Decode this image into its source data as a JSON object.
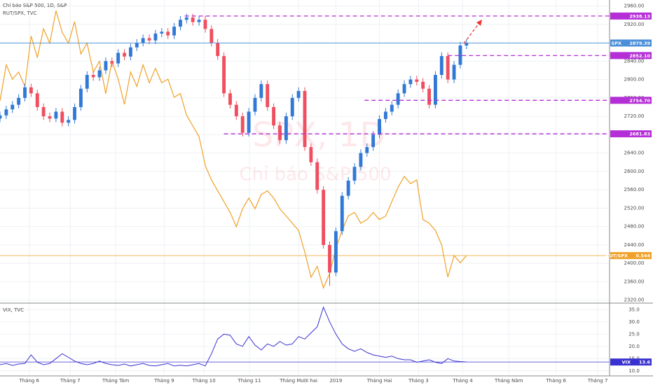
{
  "chart_data": [
    {
      "type": "candlestick",
      "title": "Chỉ báo S&P 500, 1D, S&P",
      "watermark": "SPX, 1D",
      "watermark_subtitle": "Chỉ báo S&P 500",
      "up_color": "#3179d6",
      "down_color": "#ef4f5f",
      "xlim": [
        0,
        98
      ],
      "x": [
        0,
        1,
        2,
        3,
        4,
        5,
        6,
        7,
        8,
        9,
        10,
        11,
        12,
        13,
        14,
        15,
        16,
        17,
        18,
        19,
        20,
        21,
        22,
        23,
        24,
        25,
        26,
        27,
        28,
        29,
        30,
        31,
        32,
        33,
        34,
        35,
        36,
        37,
        38,
        39,
        40,
        41,
        42,
        43,
        44,
        45,
        46,
        47,
        48,
        49,
        50,
        51,
        52,
        53,
        54,
        55,
        56,
        57,
        58,
        59,
        60,
        61,
        62,
        63,
        64,
        65,
        66,
        67,
        68,
        69,
        70,
        71,
        72,
        73,
        74,
        75
      ],
      "open": [
        2715,
        2722,
        2735,
        2745,
        2760,
        2783,
        2770,
        2740,
        2720,
        2715,
        2730,
        2706,
        2712,
        2740,
        2780,
        2810,
        2805,
        2820,
        2840,
        2835,
        2858,
        2850,
        2870,
        2880,
        2890,
        2885,
        2900,
        2904,
        2896,
        2915,
        2930,
        2935,
        2925,
        2930,
        2910,
        2880,
        2851,
        2770,
        2745,
        2720,
        2684,
        2730,
        2760,
        2790,
        2740,
        2700,
        2668,
        2720,
        2760,
        2775,
        2653,
        2620,
        2560,
        2440,
        2380,
        2470,
        2547,
        2580,
        2610,
        2640,
        2653,
        2680,
        2714,
        2730,
        2745,
        2770,
        2790,
        2800,
        2795,
        2780,
        2745,
        2810,
        2851,
        2800,
        2832,
        2874
      ],
      "high": [
        2730,
        2743,
        2753,
        2768,
        2791,
        2791,
        2778,
        2748,
        2728,
        2738,
        2738,
        2720,
        2748,
        2788,
        2818,
        2818,
        2828,
        2848,
        2848,
        2866,
        2866,
        2878,
        2888,
        2898,
        2898,
        2908,
        2912,
        2912,
        2923,
        2938,
        2943,
        2943,
        2938,
        2938,
        2918,
        2888,
        2859,
        2778,
        2753,
        2728,
        2738,
        2768,
        2798,
        2798,
        2748,
        2708,
        2728,
        2768,
        2783,
        2783,
        2661,
        2628,
        2568,
        2448,
        2478,
        2555,
        2588,
        2618,
        2648,
        2661,
        2688,
        2722,
        2738,
        2753,
        2778,
        2798,
        2808,
        2808,
        2803,
        2788,
        2818,
        2859,
        2859,
        2840,
        2882,
        2887
      ],
      "low": [
        2707,
        2714,
        2727,
        2737,
        2752,
        2762,
        2732,
        2712,
        2707,
        2707,
        2698,
        2698,
        2704,
        2732,
        2772,
        2797,
        2797,
        2812,
        2827,
        2827,
        2842,
        2842,
        2862,
        2872,
        2877,
        2877,
        2892,
        2888,
        2888,
        2907,
        2922,
        2917,
        2917,
        2902,
        2872,
        2843,
        2762,
        2737,
        2712,
        2676,
        2676,
        2722,
        2752,
        2732,
        2692,
        2660,
        2660,
        2712,
        2752,
        2645,
        2612,
        2552,
        2432,
        2351,
        2372,
        2462,
        2539,
        2572,
        2602,
        2632,
        2645,
        2672,
        2706,
        2722,
        2737,
        2762,
        2782,
        2787,
        2772,
        2737,
        2737,
        2802,
        2792,
        2792,
        2824,
        2866
      ],
      "close": [
        2722,
        2735,
        2745,
        2760,
        2783,
        2770,
        2740,
        2720,
        2715,
        2730,
        2706,
        2712,
        2740,
        2780,
        2810,
        2805,
        2820,
        2840,
        2835,
        2858,
        2850,
        2870,
        2880,
        2890,
        2885,
        2900,
        2904,
        2896,
        2915,
        2930,
        2935,
        2925,
        2930,
        2910,
        2880,
        2851,
        2770,
        2745,
        2720,
        2684,
        2730,
        2760,
        2790,
        2740,
        2700,
        2668,
        2720,
        2760,
        2775,
        2653,
        2620,
        2560,
        2440,
        2380,
        2470,
        2547,
        2580,
        2610,
        2640,
        2653,
        2680,
        2714,
        2730,
        2745,
        2770,
        2790,
        2800,
        2795,
        2780,
        2745,
        2810,
        2851,
        2800,
        2832,
        2874,
        2879.39
      ],
      "price_tag": "SPX",
      "price_tag_color": "#4a8fd8",
      "ylim": [
        2315,
        2973
      ],
      "yticks": [
        {
          "value": 2320,
          "label": "2320.00"
        },
        {
          "value": 2360,
          "label": "2360.00"
        },
        {
          "value": 2400,
          "label": "2400.00"
        },
        {
          "value": 2440,
          "label": "2440.00"
        },
        {
          "value": 2480,
          "label": "2480.00"
        },
        {
          "value": 2520,
          "label": "2520.00"
        },
        {
          "value": 2560,
          "label": "2560.00"
        },
        {
          "value": 2600,
          "label": "2600.00"
        },
        {
          "value": 2640,
          "label": "2640.00"
        },
        {
          "value": 2680,
          "label": "2680.00"
        },
        {
          "value": 2720,
          "label": "2720.00"
        },
        {
          "value": 2760,
          "label": "2760.00"
        },
        {
          "value": 2800,
          "label": "2800.00"
        },
        {
          "value": 2840,
          "label": "2840.00"
        },
        {
          "value": 2880,
          "label": "2880.00"
        },
        {
          "value": 2920,
          "label": "2920.00"
        },
        {
          "value": 2960,
          "label": "2960.00"
        }
      ],
      "grid": true,
      "level_color": "#b52fd6",
      "levels": [
        {
          "value": 2938.13,
          "label": "2938.13",
          "x_start": 29.7
        },
        {
          "value": 2852.1,
          "label": "2852.10",
          "x_start": 72
        },
        {
          "value": 2754.7,
          "label": "2754.70",
          "x_start": 58.6
        },
        {
          "value": 2681.83,
          "label": "2681.83",
          "x_start": 36
        }
      ],
      "y2lim": [
        0.531,
        0.615
      ],
      "series": [
        {
          "name": "RUT/SPX, TVC",
          "tag": "RUT/SPX",
          "color": "#f0a129",
          "axis": "y2",
          "values": [
            0.587,
            0.597,
            0.593,
            0.595,
            0.591,
            0.605,
            0.599,
            0.607,
            0.603,
            0.612,
            0.606,
            0.603,
            0.609,
            0.6,
            0.603,
            0.595,
            0.598,
            0.589,
            0.598,
            0.593,
            0.586,
            0.595,
            0.591,
            0.597,
            0.592,
            0.596,
            0.592,
            0.593,
            0.588,
            0.589,
            0.583,
            0.58,
            0.577,
            0.569,
            0.565,
            0.562,
            0.559,
            0.556,
            0.552,
            0.557,
            0.56,
            0.557,
            0.561,
            0.562,
            0.56,
            0.557,
            0.555,
            0.553,
            0.551,
            0.545,
            0.538,
            0.541,
            0.535,
            0.539,
            0.546,
            0.551,
            0.555,
            0.556,
            0.553,
            0.554,
            0.556,
            0.554,
            0.555,
            0.559,
            0.563,
            0.566,
            0.564,
            0.565,
            0.554,
            0.553,
            0.551,
            0.547,
            0.538,
            0.544,
            0.542,
            0.544
          ]
        }
      ]
    },
    {
      "type": "line",
      "title": "VIX, TVC",
      "xlim": [
        0,
        98
      ],
      "x": [
        0,
        1,
        2,
        3,
        4,
        5,
        6,
        7,
        8,
        9,
        10,
        11,
        12,
        13,
        14,
        15,
        16,
        17,
        18,
        19,
        20,
        21,
        22,
        23,
        24,
        25,
        26,
        27,
        28,
        29,
        30,
        31,
        32,
        33,
        34,
        35,
        36,
        37,
        38,
        39,
        40,
        41,
        42,
        43,
        44,
        45,
        46,
        47,
        48,
        49,
        50,
        51,
        52,
        53,
        54,
        55,
        56,
        57,
        58,
        59,
        60,
        61,
        62,
        63,
        64,
        65,
        66,
        67,
        68,
        69,
        70,
        71,
        72,
        73,
        74,
        75
      ],
      "xticks": [
        {
          "value": 4.7,
          "label": "Tháng 6"
        },
        {
          "value": 11.3,
          "label": "Tháng 7"
        },
        {
          "value": 18.6,
          "label": "Tháng Tám"
        },
        {
          "value": 26.4,
          "label": "Tháng 9"
        },
        {
          "value": 32.8,
          "label": "Tháng 10"
        },
        {
          "value": 40.1,
          "label": "Tháng 11"
        },
        {
          "value": 48,
          "label": "Tháng Mười hai"
        },
        {
          "value": 54,
          "label": "2019"
        },
        {
          "value": 61,
          "label": "Tháng Hai"
        },
        {
          "value": 67.3,
          "label": "Tháng 3"
        },
        {
          "value": 74.4,
          "label": "Tháng 4"
        },
        {
          "value": 81.8,
          "label": "Tháng Năm"
        },
        {
          "value": 89.4,
          "label": "Tháng 6"
        },
        {
          "value": 96.1,
          "label": "Tháng 7"
        }
      ],
      "ylim": [
        8.5,
        36.5
      ],
      "yticks": [
        {
          "value": 10,
          "label": "10.0"
        },
        {
          "value": 15,
          "label": "15.0"
        },
        {
          "value": 20,
          "label": "20.0"
        },
        {
          "value": 25,
          "label": "25.0"
        },
        {
          "value": 30,
          "label": "30.0"
        },
        {
          "value": 35,
          "label": "35.0"
        }
      ],
      "series": [
        {
          "name": "VIX",
          "color": "#3a32d0",
          "values": [
            12.5,
            13,
            12.2,
            12.8,
            13,
            16.5,
            13.5,
            12.5,
            13,
            15,
            17,
            15.5,
            14,
            13,
            12.5,
            13,
            14,
            13,
            12.5,
            12.2,
            12.8,
            12,
            12.5,
            13,
            12.2,
            12,
            12.5,
            13,
            12,
            12.3,
            12,
            12.5,
            13,
            12,
            17,
            23,
            25,
            24.5,
            21,
            20,
            24,
            20.5,
            18.5,
            21,
            20,
            22,
            20.5,
            21,
            24,
            23,
            25.5,
            28,
            36,
            30,
            25,
            21,
            19,
            18,
            19,
            17.5,
            16.5,
            16,
            15.5,
            16,
            15,
            14.5,
            14.5,
            13.5,
            14,
            14.5,
            13.5,
            13,
            15,
            14,
            13.8,
            13.6
          ]
        }
      ]
    }
  ]
}
